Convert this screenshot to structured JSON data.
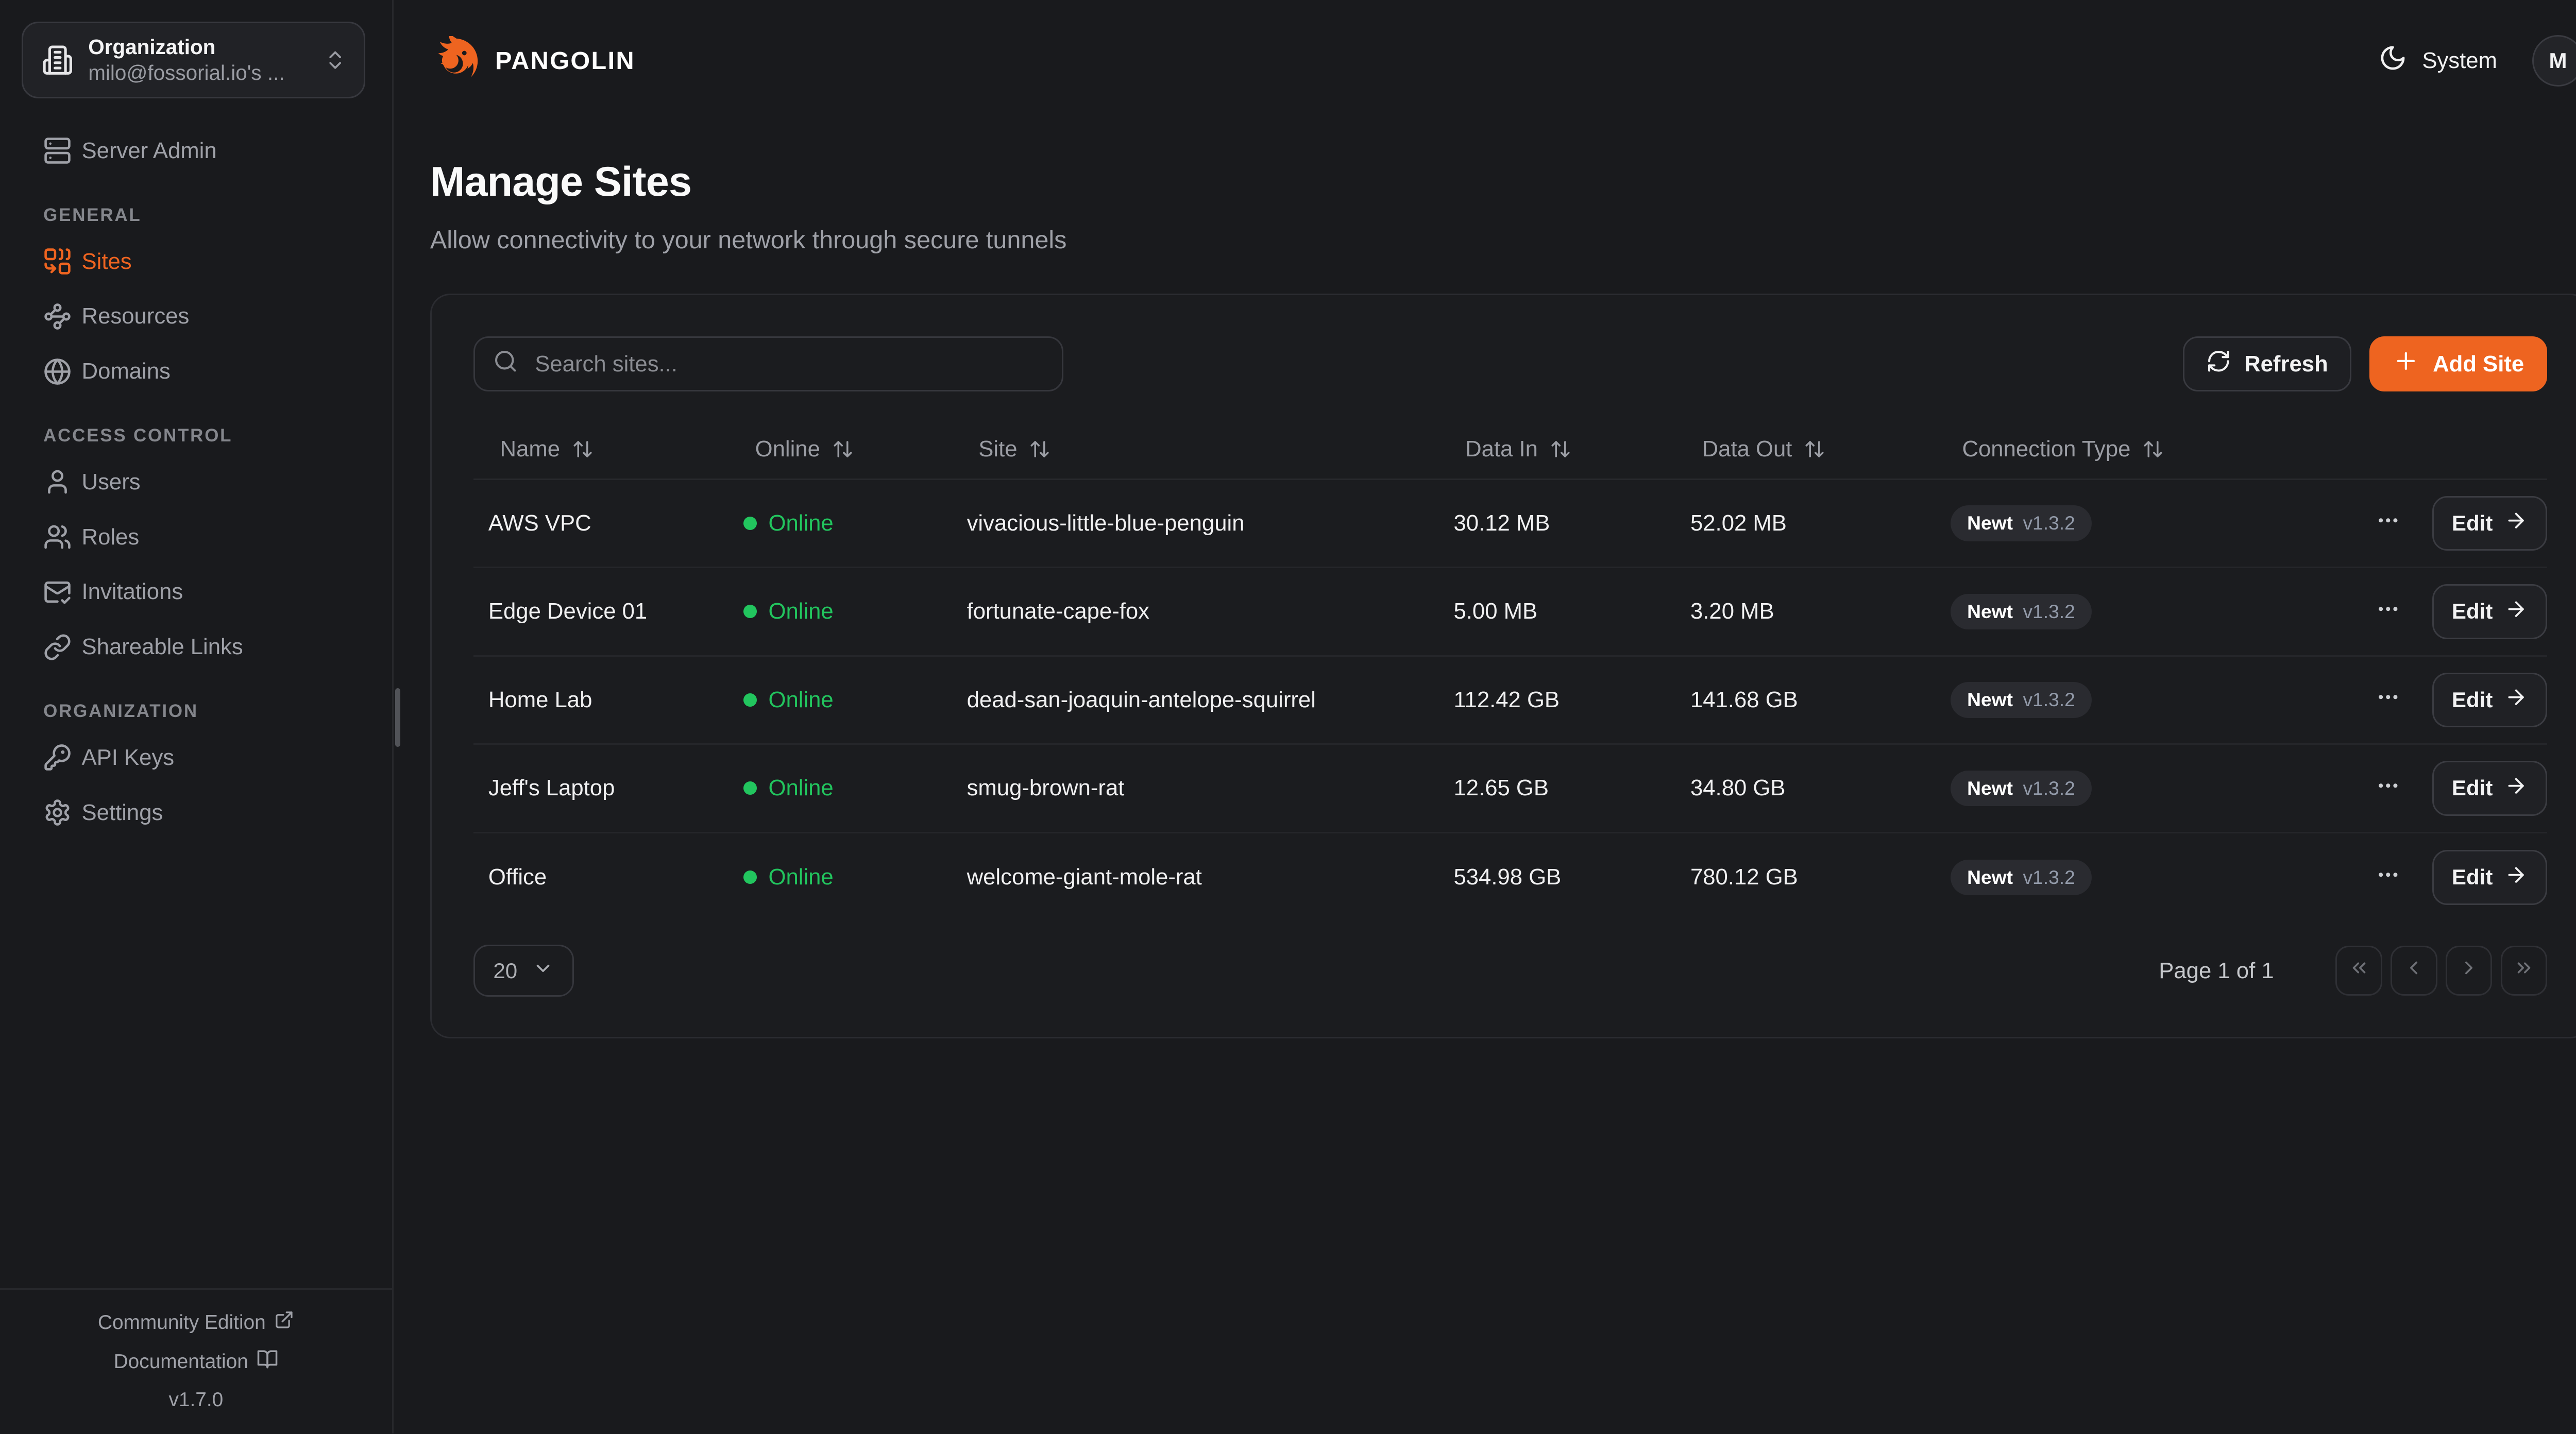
{
  "colors": {
    "accent": "#ee6420",
    "online_green": "#22c55e"
  },
  "org_selector": {
    "title": "Organization",
    "value": "milo@fossorial.io's ...",
    "icon": "building"
  },
  "sidebar": {
    "top_item": {
      "label": "Server Admin",
      "icon": "server"
    },
    "sections": [
      {
        "heading": "GENERAL",
        "items": [
          {
            "label": "Sites",
            "icon": "combine",
            "active": true
          },
          {
            "label": "Resources",
            "icon": "waypoints",
            "active": false
          },
          {
            "label": "Domains",
            "icon": "globe",
            "active": false
          }
        ]
      },
      {
        "heading": "ACCESS CONTROL",
        "items": [
          {
            "label": "Users",
            "icon": "user",
            "active": false
          },
          {
            "label": "Roles",
            "icon": "users",
            "active": false
          },
          {
            "label": "Invitations",
            "icon": "mail-check",
            "active": false
          },
          {
            "label": "Shareable Links",
            "icon": "link",
            "active": false
          }
        ]
      },
      {
        "heading": "ORGANIZATION",
        "items": [
          {
            "label": "API Keys",
            "icon": "key",
            "active": false
          },
          {
            "label": "Settings",
            "icon": "settings",
            "active": false
          }
        ]
      }
    ],
    "footer": {
      "community_edition": "Community Edition",
      "documentation": "Documentation",
      "version": "v1.7.0"
    }
  },
  "header": {
    "brand": "PANGOLIN",
    "theme_toggle_label": "System",
    "avatar_initial": "M"
  },
  "page": {
    "title": "Manage Sites",
    "subtitle": "Allow connectivity to your network through secure tunnels"
  },
  "toolbar": {
    "search_placeholder": "Search sites...",
    "refresh_label": "Refresh",
    "add_site_label": "Add Site"
  },
  "table": {
    "columns": [
      {
        "label": "Name"
      },
      {
        "label": "Online"
      },
      {
        "label": "Site"
      },
      {
        "label": "Data In"
      },
      {
        "label": "Data Out"
      },
      {
        "label": "Connection Type"
      }
    ],
    "rows": [
      {
        "name": "AWS VPC",
        "status": "Online",
        "site": "vivacious-little-blue-penguin",
        "data_in": "30.12 MB",
        "data_out": "52.02 MB",
        "connection_type": "Newt",
        "connection_version": "v1.3.2",
        "edit_label": "Edit"
      },
      {
        "name": "Edge Device 01",
        "status": "Online",
        "site": "fortunate-cape-fox",
        "data_in": "5.00 MB",
        "data_out": "3.20 MB",
        "connection_type": "Newt",
        "connection_version": "v1.3.2",
        "edit_label": "Edit"
      },
      {
        "name": "Home Lab",
        "status": "Online",
        "site": "dead-san-joaquin-antelope-squirrel",
        "data_in": "112.42 GB",
        "data_out": "141.68 GB",
        "connection_type": "Newt",
        "connection_version": "v1.3.2",
        "edit_label": "Edit"
      },
      {
        "name": "Jeff's Laptop",
        "status": "Online",
        "site": "smug-brown-rat",
        "data_in": "12.65 GB",
        "data_out": "34.80 GB",
        "connection_type": "Newt",
        "connection_version": "v1.3.2",
        "edit_label": "Edit"
      },
      {
        "name": "Office",
        "status": "Online",
        "site": "welcome-giant-mole-rat",
        "data_in": "534.98 GB",
        "data_out": "780.12 GB",
        "connection_type": "Newt",
        "connection_version": "v1.3.2",
        "edit_label": "Edit"
      }
    ]
  },
  "pagination": {
    "page_size": "20",
    "page_indicator": "Page 1 of 1"
  }
}
